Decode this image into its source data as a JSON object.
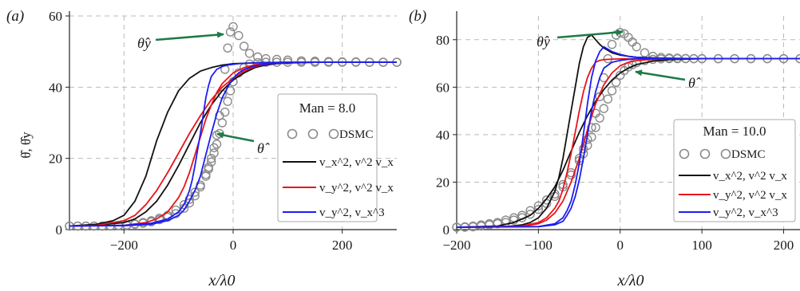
{
  "colors": {
    "dsmc": "#8a8a8a",
    "s1": "#111111",
    "s2": "#e8141b",
    "s3": "#1d1df0",
    "arrow": "#1e7a46",
    "grid": "#b9b9b9"
  },
  "chart_data": [
    {
      "type": "line",
      "panel_label": "(a)",
      "xlabel": "x/λ0",
      "ylabel": "θ̂, θ̂y",
      "xlim": [
        -300,
        300
      ],
      "ylim": [
        0,
        60
      ],
      "xticks": [
        -200,
        0,
        200
      ],
      "xtick_labels": [
        "−200",
        "0",
        "200"
      ],
      "yticks": [
        0,
        20,
        40,
        60
      ],
      "ytick_labels": [
        "0",
        "20",
        "40",
        "60"
      ],
      "grid": true,
      "legend_position": "right",
      "legend": {
        "title": "Man = 8.0",
        "items": [
          "DSMC",
          "v_x^2, v^2 v_x",
          "v_y^2, v^2 v_x",
          "v_y^2, v_x^3"
        ]
      },
      "annotations": [
        {
          "label": "θ̂y",
          "points_to": [
            -20,
            55
          ]
        },
        {
          "label": "θ̂",
          "points_to": [
            -25,
            27
          ]
        }
      ],
      "series": [
        {
          "name": "DSMC",
          "kind": "markers",
          "x": [
            -300,
            -285,
            -270,
            -255,
            -240,
            -225,
            -210,
            -195,
            -180,
            -165,
            -150,
            -135,
            -120,
            -105,
            -90,
            -80,
            -70,
            -60,
            -50,
            -45,
            -40,
            -35,
            -30,
            -25,
            -20,
            -15,
            -10,
            -5,
            0,
            10,
            20,
            30,
            45,
            60,
            80,
            100,
            125,
            150,
            175,
            200,
            225,
            250,
            275,
            300
          ],
          "y": [
            1,
            1,
            1,
            1,
            1,
            1.1,
            1.2,
            1.3,
            1.6,
            2,
            2.5,
            3.2,
            4,
            5.5,
            7,
            8.5,
            10.5,
            12.5,
            15.5,
            17.5,
            20,
            23,
            26.5,
            32,
            38,
            45,
            51,
            55.5,
            57,
            54.5,
            51.5,
            49.5,
            48.5,
            48,
            47.8,
            47.6,
            47.4,
            47.3,
            47.2,
            47.1,
            47.1,
            47,
            47,
            47
          ]
        },
        {
          "name": "DSMC",
          "kind": "markers",
          "x": [
            -300,
            -285,
            -270,
            -255,
            -240,
            -225,
            -210,
            -195,
            -180,
            -165,
            -150,
            -135,
            -120,
            -105,
            -90,
            -80,
            -70,
            -60,
            -50,
            -45,
            -40,
            -35,
            -30,
            -25,
            -20,
            -15,
            -10,
            -5,
            0,
            10,
            20,
            30,
            45,
            60,
            80,
            100,
            125,
            150,
            175,
            200,
            225,
            250,
            275,
            300
          ],
          "y": [
            1,
            1,
            1,
            1,
            1,
            1,
            1.1,
            1.2,
            1.5,
            1.8,
            2.2,
            2.8,
            3.5,
            4.5,
            6,
            7.5,
            9.5,
            12,
            15,
            17,
            19,
            21.5,
            24,
            27,
            30,
            33,
            36,
            39,
            41.5,
            44,
            45.5,
            46.5,
            46.9,
            47,
            47,
            47,
            47,
            47,
            47,
            47,
            47,
            47,
            47,
            47
          ]
        },
        {
          "name": "v_x^2, v^2 v_x (θ̂y)",
          "kind": "line",
          "x": [
            -300,
            -250,
            -220,
            -200,
            -180,
            -160,
            -150,
            -140,
            -120,
            -100,
            -80,
            -60,
            -40,
            -20,
            0,
            50,
            100,
            200,
            300
          ],
          "y": [
            1,
            1.5,
            2.5,
            4,
            8,
            15,
            20,
            25,
            33,
            39,
            42.5,
            44.5,
            45.5,
            46.2,
            46.6,
            46.9,
            47,
            47,
            47
          ]
        },
        {
          "name": "v_x^2, v^2 v_x (θ̂)",
          "kind": "line",
          "x": [
            -300,
            -250,
            -200,
            -180,
            -160,
            -140,
            -120,
            -100,
            -80,
            -60,
            -40,
            -20,
            0,
            20,
            40,
            60,
            80,
            100,
            150,
            200,
            300
          ],
          "y": [
            1,
            1.2,
            2,
            3,
            5,
            8,
            12.5,
            18,
            24,
            30,
            35,
            39,
            42,
            44,
            45.5,
            46.2,
            46.6,
            46.8,
            47,
            47,
            47
          ]
        },
        {
          "name": "v_y^2, v^2 v_x (θ̂y)",
          "kind": "line",
          "x": [
            -300,
            -250,
            -200,
            -180,
            -160,
            -140,
            -120,
            -100,
            -80,
            -60,
            -40,
            -20,
            0,
            20,
            40,
            60,
            80,
            100,
            150,
            200,
            300
          ],
          "y": [
            1,
            1.2,
            2.5,
            4,
            7,
            11,
            16,
            21.5,
            27,
            32,
            36.5,
            40,
            42.5,
            44.5,
            45.8,
            46.4,
            46.7,
            46.9,
            47,
            47,
            47
          ]
        },
        {
          "name": "v_y^2, v^2 v_x (θ̂)",
          "kind": "line",
          "x": [
            -300,
            -200,
            -160,
            -140,
            -120,
            -100,
            -90,
            -80,
            -70,
            -60,
            -50,
            -40,
            -30,
            -20,
            0,
            20,
            40,
            60,
            80,
            100,
            150,
            200,
            300
          ],
          "y": [
            1,
            1.2,
            2,
            3,
            5,
            9,
            12,
            16,
            21,
            26,
            31,
            35,
            38.5,
            41,
            44,
            45.5,
            46.3,
            46.7,
            46.9,
            47,
            47,
            47,
            47
          ]
        },
        {
          "name": "v_y^2, v_x^3 (θ̂y)",
          "kind": "line",
          "x": [
            -300,
            -200,
            -150,
            -120,
            -100,
            -90,
            -80,
            -75,
            -70,
            -65,
            -60,
            -55,
            -50,
            -45,
            -40,
            -30,
            -20,
            -10,
            0,
            10,
            20,
            40,
            60,
            100,
            150,
            200,
            300
          ],
          "y": [
            1,
            1.2,
            1.8,
            3,
            5,
            7,
            11,
            14,
            18,
            22.5,
            27,
            32,
            37,
            40.5,
            43,
            45,
            45.8,
            46.2,
            46.4,
            46.6,
            46.7,
            46.8,
            46.9,
            47,
            47,
            47,
            47
          ]
        },
        {
          "name": "v_y^2, v_x^3 (θ̂)",
          "kind": "line",
          "x": [
            -300,
            -200,
            -150,
            -120,
            -100,
            -90,
            -80,
            -70,
            -60,
            -50,
            -40,
            -30,
            -20,
            -10,
            0,
            10,
            20,
            40,
            60,
            100,
            150,
            200,
            300
          ],
          "y": [
            1,
            1.1,
            1.5,
            2.5,
            4,
            5.5,
            8,
            11,
            15,
            21,
            27,
            32.5,
            37,
            40,
            42.5,
            44,
            45,
            46,
            46.5,
            46.9,
            47,
            47,
            47
          ]
        }
      ]
    },
    {
      "type": "line",
      "panel_label": "(b)",
      "xlabel": "x/λ0",
      "ylabel": "",
      "xlim": [
        -200,
        220
      ],
      "ylim": [
        0,
        90
      ],
      "xticks": [
        -200,
        -100,
        0,
        100,
        200
      ],
      "xtick_labels": [
        "−200",
        "−100",
        "0",
        "100",
        "200"
      ],
      "yticks": [
        0,
        20,
        40,
        60,
        80
      ],
      "ytick_labels": [
        "0",
        "20",
        "40",
        "60",
        "80"
      ],
      "grid": true,
      "legend_position": "right",
      "legend": {
        "title": "Man = 10.0",
        "items": [
          "DSMC",
          "v_x^2, v^2 v_x",
          "v_y^2, v^2 v_x",
          "v_y^2, v_x^3"
        ]
      },
      "annotations": [
        {
          "label": "θ̂y",
          "points_to": [
            -15,
            83
          ]
        },
        {
          "label": "θ̂",
          "points_to": [
            -5,
            67
          ]
        }
      ],
      "series": [
        {
          "name": "DSMC",
          "kind": "markers",
          "x": [
            -200,
            -190,
            -180,
            -170,
            -160,
            -150,
            -140,
            -130,
            -120,
            -110,
            -100,
            -90,
            -80,
            -70,
            -60,
            -50,
            -45,
            -40,
            -35,
            -30,
            -25,
            -20,
            -15,
            -10,
            -5,
            0,
            5,
            10,
            15,
            20,
            30,
            40,
            50,
            60,
            70,
            80,
            90,
            100,
            120,
            140,
            160,
            180,
            200,
            220
          ],
          "y": [
            1,
            1.2,
            1.5,
            2,
            2.5,
            3,
            4,
            5,
            6,
            8,
            10,
            12.5,
            15,
            19,
            24,
            30,
            34,
            38,
            43,
            49,
            56,
            64,
            72,
            78,
            82,
            83,
            82.5,
            81,
            79,
            77,
            74.5,
            73,
            72.5,
            72.3,
            72.2,
            72.1,
            72,
            72,
            72,
            72,
            72,
            72,
            72,
            72
          ]
        },
        {
          "name": "DSMC",
          "kind": "markers",
          "x": [
            -200,
            -190,
            -180,
            -170,
            -160,
            -150,
            -140,
            -130,
            -120,
            -110,
            -100,
            -90,
            -80,
            -70,
            -60,
            -50,
            -45,
            -40,
            -35,
            -30,
            -25,
            -20,
            -15,
            -10,
            -5,
            0,
            5,
            10,
            15,
            20,
            30,
            40,
            50,
            60,
            70,
            80,
            90,
            100,
            120,
            140,
            160,
            180,
            200,
            220
          ],
          "y": [
            1,
            1,
            1.2,
            1.5,
            2,
            2.5,
            3,
            4,
            5,
            6.5,
            8.5,
            11,
            14,
            18,
            23,
            29,
            32,
            35.5,
            39,
            43,
            47,
            51,
            55,
            58.5,
            62,
            65,
            67,
            68.5,
            69.5,
            70.3,
            71.2,
            71.7,
            71.9,
            72,
            72,
            72,
            72,
            72,
            72,
            72,
            72,
            72,
            72,
            72
          ]
        },
        {
          "name": "v_x^2, v^2 v_x (θ̂y)",
          "kind": "line",
          "x": [
            -200,
            -140,
            -120,
            -110,
            -100,
            -90,
            -80,
            -75,
            -70,
            -65,
            -60,
            -55,
            -50,
            -45,
            -40,
            -35,
            -30,
            -25,
            -20,
            -10,
            0,
            10,
            20,
            40,
            60,
            100,
            150,
            220
          ],
          "y": [
            1,
            1.2,
            2,
            3,
            5,
            9,
            16,
            22,
            30,
            40,
            50,
            60,
            70,
            77,
            81,
            82,
            80,
            78,
            76.5,
            74.5,
            73.5,
            73,
            72.6,
            72.3,
            72.2,
            72,
            72,
            72
          ]
        },
        {
          "name": "v_x^2, v^2 v_x (θ̂)",
          "kind": "line",
          "x": [
            -200,
            -150,
            -130,
            -110,
            -100,
            -90,
            -80,
            -70,
            -60,
            -50,
            -40,
            -30,
            -20,
            -10,
            0,
            10,
            20,
            40,
            60,
            100,
            150,
            220
          ],
          "y": [
            1,
            1.5,
            3,
            6,
            9,
            13,
            18,
            25,
            33,
            41,
            48,
            54,
            59,
            63,
            66,
            68,
            69.5,
            71,
            71.6,
            72,
            72,
            72
          ]
        },
        {
          "name": "v_y^2, v^2 v_x (θ̂y)",
          "kind": "line",
          "x": [
            -200,
            -120,
            -100,
            -90,
            -80,
            -75,
            -70,
            -65,
            -60,
            -55,
            -50,
            -45,
            -40,
            -35,
            -30,
            -25,
            -20,
            -10,
            0,
            20,
            40,
            60,
            100,
            150,
            220
          ],
          "y": [
            1,
            1.5,
            3,
            5,
            9,
            12,
            17,
            24,
            32,
            41,
            50,
            58,
            64,
            68,
            70.5,
            71.3,
            71.6,
            71.8,
            71.9,
            72,
            72,
            72,
            72,
            72,
            72
          ]
        },
        {
          "name": "v_y^2, v^2 v_x (θ̂)",
          "kind": "line",
          "x": [
            -200,
            -120,
            -100,
            -90,
            -80,
            -70,
            -60,
            -50,
            -40,
            -30,
            -20,
            -10,
            0,
            10,
            20,
            40,
            60,
            100,
            150,
            220
          ],
          "y": [
            1,
            1.3,
            2.5,
            4,
            7,
            12,
            20,
            30,
            42,
            53,
            61,
            66,
            69,
            70.5,
            71.2,
            71.7,
            71.9,
            72,
            72,
            72
          ]
        },
        {
          "name": "v_y^2, v_x^3 (θ̂y)",
          "kind": "line",
          "x": [
            -200,
            -100,
            -80,
            -70,
            -65,
            -60,
            -55,
            -50,
            -45,
            -40,
            -35,
            -30,
            -25,
            -20,
            -15,
            -10,
            0,
            10,
            20,
            40,
            60,
            100,
            150,
            220
          ],
          "y": [
            1,
            1.3,
            2.5,
            5,
            8,
            12,
            19,
            28,
            40,
            53,
            64,
            71,
            75,
            77,
            76,
            75,
            73.8,
            73,
            72.6,
            72.3,
            72.1,
            72,
            72,
            72
          ]
        },
        {
          "name": "v_y^2, v_x^3 (θ̂)",
          "kind": "line",
          "x": [
            -200,
            -100,
            -80,
            -70,
            -65,
            -60,
            -55,
            -50,
            -45,
            -40,
            -35,
            -30,
            -25,
            -20,
            -10,
            0,
            10,
            20,
            40,
            60,
            100,
            150,
            220
          ],
          "y": [
            1,
            1.2,
            2,
            3.5,
            6,
            9,
            14,
            21,
            30,
            40,
            50,
            58,
            64,
            68,
            70.5,
            71.3,
            71.7,
            71.9,
            72,
            72,
            72,
            72,
            72
          ]
        }
      ]
    }
  ]
}
